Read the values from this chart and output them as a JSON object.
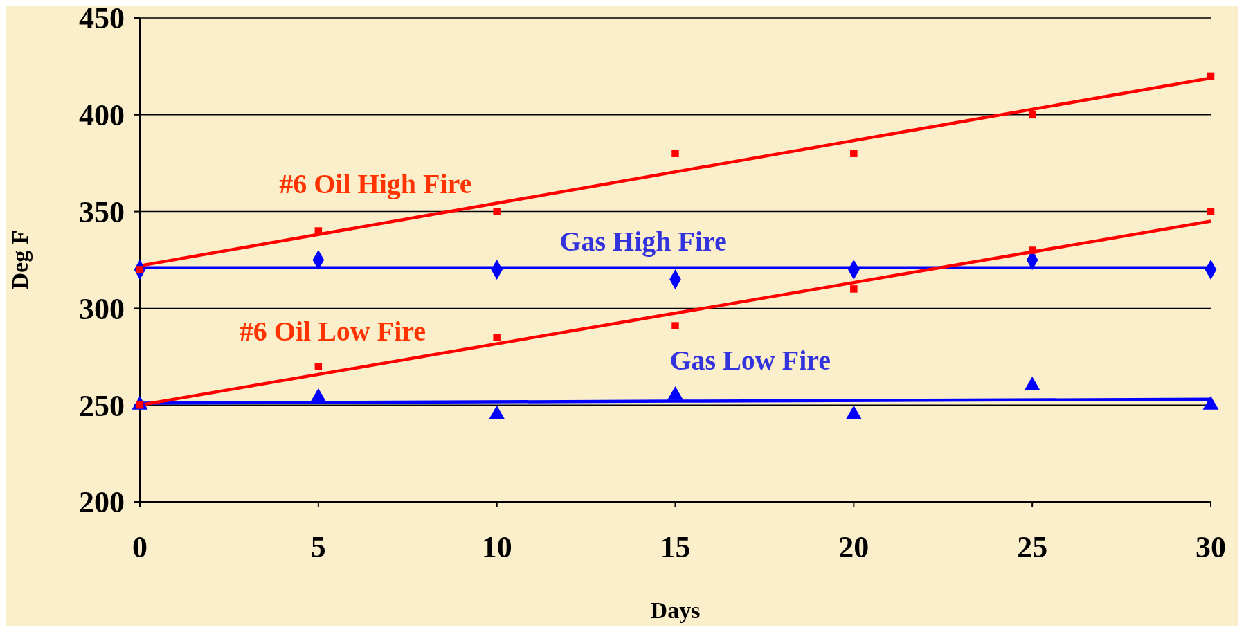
{
  "chart_data": {
    "type": "scatter",
    "xlabel": "Days",
    "ylabel": "Deg F",
    "xlim": [
      0,
      30
    ],
    "xticks": [
      0,
      5,
      10,
      15,
      20,
      25,
      30
    ],
    "ylim": [
      200,
      450
    ],
    "yticks": [
      200,
      250,
      300,
      350,
      400,
      450
    ],
    "grid": "y",
    "legend": false,
    "series": [
      {
        "name": "#6 Oil High Fire",
        "color": "#ff0000",
        "marker": "square",
        "x": [
          0,
          5,
          10,
          15,
          20,
          25,
          30
        ],
        "values": [
          320,
          340,
          350,
          380,
          380,
          400,
          420
        ]
      },
      {
        "name": "#6 Oil Low Fire",
        "color": "#ff0000",
        "marker": "square",
        "x": [
          0,
          5,
          10,
          15,
          20,
          25,
          30
        ],
        "values": [
          250,
          270,
          285,
          291,
          310,
          330,
          350
        ]
      },
      {
        "name": "Gas High Fire",
        "color": "#0000ff",
        "marker": "diamond",
        "x": [
          0,
          5,
          10,
          15,
          20,
          25,
          30
        ],
        "values": [
          320,
          325,
          320,
          315,
          320,
          325,
          320
        ]
      },
      {
        "name": "Gas Low Fire",
        "color": "#0000ff",
        "marker": "triangle",
        "x": [
          0,
          5,
          10,
          15,
          20,
          25,
          30
        ],
        "values": [
          250,
          254,
          245,
          255,
          245,
          260,
          250
        ]
      },
      {
        "type": "line",
        "color": "#ff0000",
        "marker": "none",
        "x": [
          0,
          30
        ],
        "values": [
          322,
          419
        ]
      },
      {
        "type": "line",
        "color": "#ff0000",
        "marker": "none",
        "x": [
          0,
          30
        ],
        "values": [
          250,
          345
        ]
      },
      {
        "type": "line",
        "color": "#0000ff",
        "marker": "none",
        "x": [
          0,
          30
        ],
        "values": [
          321,
          321
        ]
      },
      {
        "type": "line",
        "color": "#0000ff",
        "marker": "none",
        "x": [
          0,
          15,
          30
        ],
        "values": [
          251,
          252,
          253
        ]
      }
    ]
  }
}
